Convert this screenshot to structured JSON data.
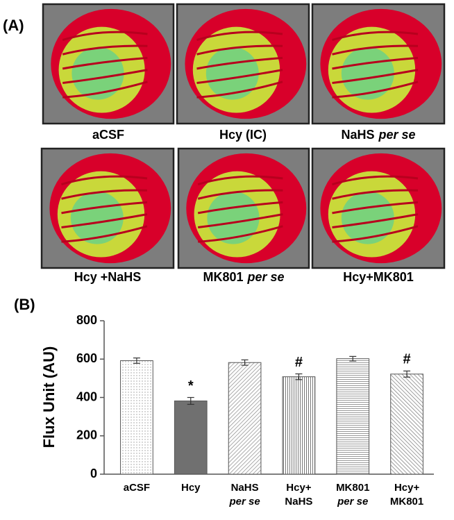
{
  "panel_a": {
    "label": "(A)",
    "images": [
      {
        "label": "aCSF"
      },
      {
        "label": "Hcy (IC)"
      },
      {
        "label": "NaHS",
        "italic": "per se"
      },
      {
        "label": "Hcy +NaHS"
      },
      {
        "label": "MK801",
        "italic": "per se"
      },
      {
        "label": "Hcy+MK801"
      }
    ]
  },
  "chart_data": {
    "type": "bar",
    "panel_label": "(B)",
    "y_label": "Flux Unit (AU)",
    "categories": [
      [
        "aCSF"
      ],
      [
        "Hcy"
      ],
      [
        "NaHS",
        {
          "italic": "per se"
        }
      ],
      [
        "Hcy+",
        "NaHS"
      ],
      [
        "MK801",
        {
          "italic": "per se"
        }
      ],
      [
        "Hcy+",
        "MK801"
      ]
    ],
    "values": [
      592,
      382,
      582,
      508,
      602,
      522
    ],
    "errors": [
      14,
      18,
      14,
      15,
      12,
      16
    ],
    "value_annotations": [
      null,
      "*",
      null,
      "#",
      null,
      "#"
    ],
    "colors": [
      "#e8e8e8",
      "#707070",
      "#bdbdbd",
      "#9a9a9a",
      "#c8c8c8",
      "#a8a8a8"
    ],
    "ylim": [
      0,
      800
    ],
    "yticks": [
      0,
      200,
      400,
      600,
      800
    ]
  }
}
